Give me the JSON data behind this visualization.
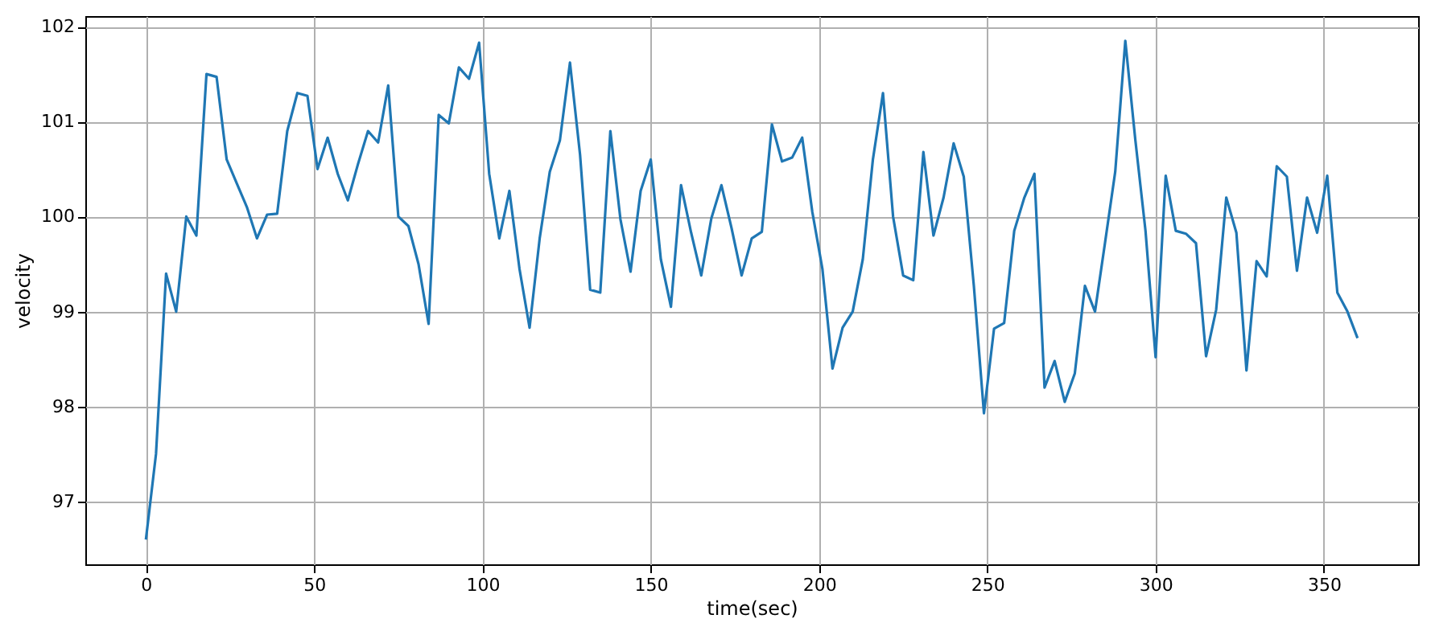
{
  "chart_data": {
    "type": "line",
    "xlabel": "time(sec)",
    "ylabel": "velocity",
    "x": [
      0,
      3,
      6,
      9,
      12,
      15,
      18,
      21,
      24,
      27,
      30,
      33,
      36,
      39,
      42,
      45,
      48,
      51,
      54,
      57,
      60,
      63,
      66,
      69,
      72,
      75,
      78,
      81,
      84,
      87,
      90,
      93,
      96,
      99,
      102,
      105,
      108,
      111,
      114,
      117,
      120,
      123,
      126,
      129,
      132,
      135,
      138,
      141,
      144,
      147,
      150,
      153,
      156,
      159,
      162,
      165,
      168,
      171,
      174,
      177,
      180,
      183,
      186,
      189,
      192,
      195,
      198,
      201,
      204,
      207,
      210,
      213,
      216,
      219,
      222,
      225,
      228,
      231,
      234,
      237,
      240,
      243,
      246,
      249,
      252,
      255,
      258,
      261,
      264,
      267,
      270,
      273,
      276,
      279,
      282,
      285,
      288,
      291,
      294,
      297,
      300,
      303,
      306,
      309,
      312,
      315,
      318,
      321,
      324,
      327,
      330,
      333,
      336,
      339,
      342,
      345,
      348,
      351,
      354,
      357,
      360
    ],
    "series": [
      {
        "color": "#1f77b4",
        "values": [
          96.6,
          97.5,
          99.4,
          99.0,
          100.0,
          99.8,
          101.5,
          101.47,
          100.6,
          100.35,
          100.1,
          99.77,
          100.02,
          100.03,
          100.9,
          101.3,
          101.27,
          100.5,
          100.83,
          100.45,
          100.17,
          100.55,
          100.9,
          100.78,
          101.38,
          100.0,
          99.9,
          99.5,
          98.87,
          101.07,
          100.98,
          101.57,
          101.45,
          101.83,
          100.45,
          99.77,
          100.27,
          99.45,
          98.83,
          99.77,
          100.47,
          100.8,
          101.62,
          100.65,
          99.23,
          99.2,
          100.9,
          99.97,
          99.42,
          100.27,
          100.6,
          99.55,
          99.05,
          100.33,
          99.83,
          99.38,
          99.98,
          100.33,
          99.88,
          99.38,
          99.77,
          99.84,
          100.97,
          100.58,
          100.62,
          100.83,
          100.05,
          99.45,
          98.4,
          98.83,
          99.0,
          99.55,
          100.6,
          101.3,
          100.0,
          99.38,
          99.33,
          100.68,
          99.8,
          100.2,
          100.77,
          100.42,
          99.27,
          97.93,
          98.82,
          98.88,
          99.85,
          100.2,
          100.45,
          98.2,
          98.48,
          98.05,
          98.35,
          99.27,
          99.0,
          99.73,
          100.47,
          101.85,
          100.8,
          99.85,
          98.52,
          100.43,
          99.85,
          99.82,
          99.72,
          98.53,
          99.02,
          100.2,
          99.83,
          98.38,
          99.53,
          99.37,
          100.53,
          100.42,
          99.43,
          100.2,
          99.83,
          100.43,
          99.2,
          99.0,
          98.72
        ]
      }
    ],
    "xlim": [
      -18,
      378
    ],
    "xticks": [
      0,
      50,
      100,
      150,
      200,
      250,
      300,
      350
    ],
    "ylim": [
      96.34,
      102.11
    ],
    "yticks": [
      97,
      98,
      99,
      100,
      101,
      102
    ],
    "grid": true,
    "line_style": "solid"
  }
}
